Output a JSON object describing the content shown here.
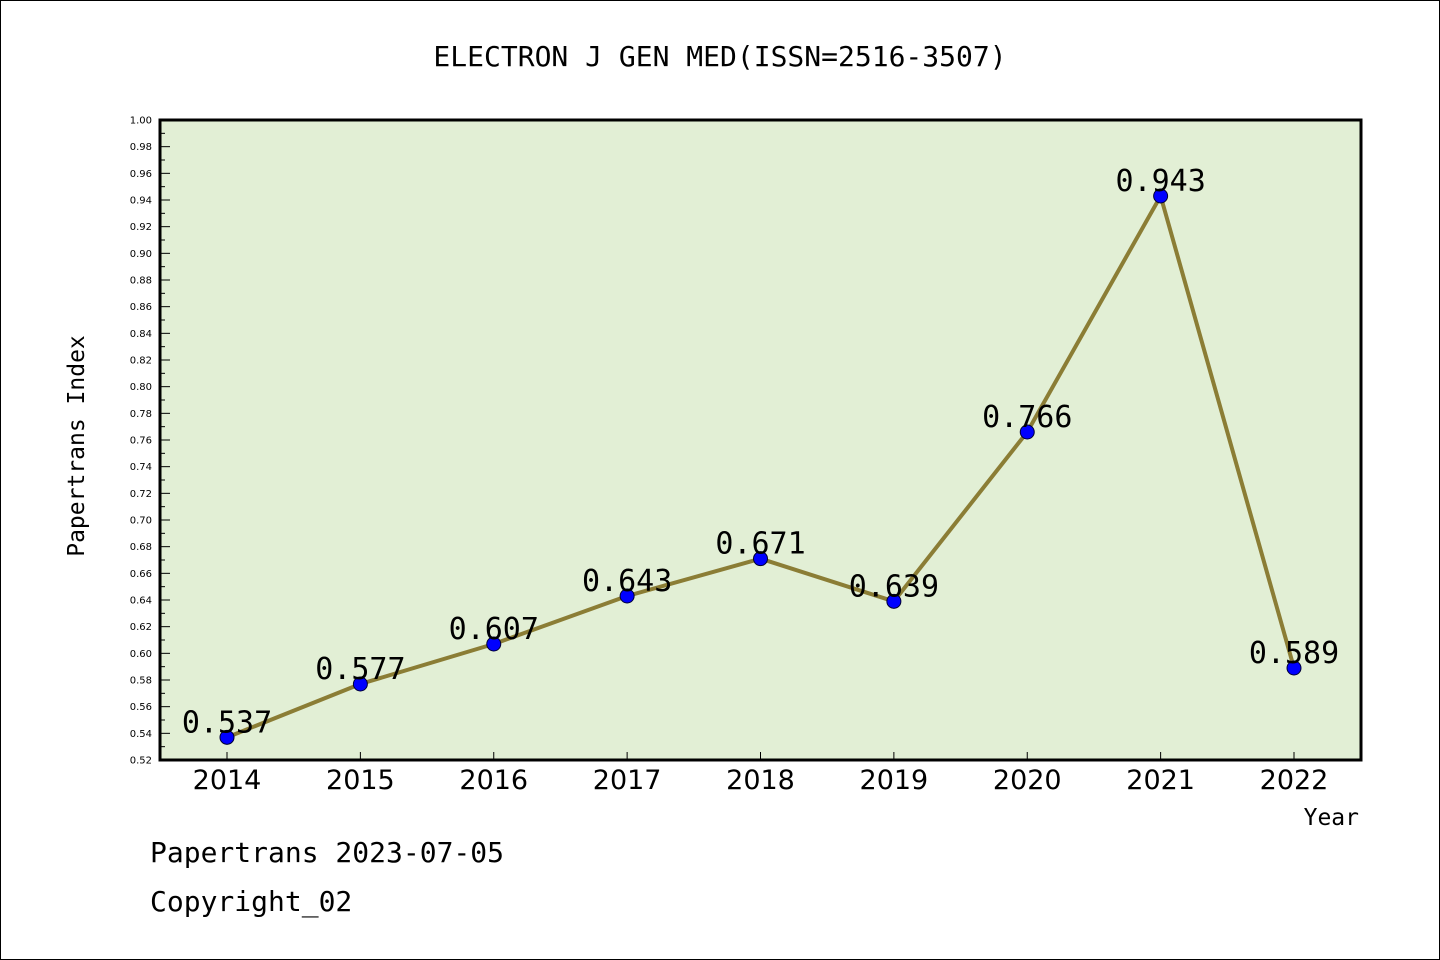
{
  "chart_data": {
    "type": "line",
    "title": "ELECTRON J GEN MED(ISSN=2516-3507)",
    "xlabel": "Year",
    "ylabel": "Papertrans Index",
    "categories": [
      "2014",
      "2015",
      "2016",
      "2017",
      "2018",
      "2019",
      "2020",
      "2021",
      "2022"
    ],
    "series": [
      {
        "values": [
          0.537,
          0.577,
          0.607,
          0.643,
          0.671,
          0.639,
          0.766,
          0.943,
          0.589
        ]
      }
    ],
    "data_labels": [
      "0.537",
      "0.577",
      "0.607",
      "0.643",
      "0.671",
      "0.639",
      "0.766",
      "0.943",
      "0.589"
    ],
    "ylim": [
      0.52,
      1.0
    ],
    "ytick_step": 0.02,
    "grid": false,
    "colors": {
      "plot_background": "#e2efd5",
      "line": "#8b7d35",
      "marker": "#0000ff"
    }
  },
  "footer": {
    "line1": "Papertrans 2023-07-05",
    "line2": "Copyright_02"
  }
}
